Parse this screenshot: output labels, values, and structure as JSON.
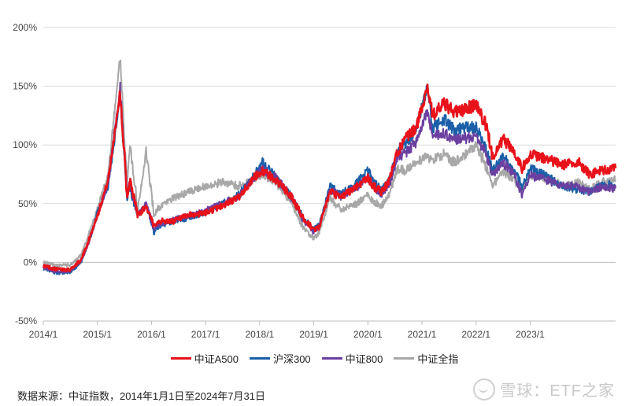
{
  "chart_data": {
    "type": "line",
    "title": "",
    "xlabel": "",
    "ylabel": "",
    "y_ticks": [
      "-50%",
      "0%",
      "50%",
      "100%",
      "150%",
      "200%"
    ],
    "ylim": [
      -50,
      200
    ],
    "x_ticks": [
      "2014/1",
      "2015/1",
      "2016/1",
      "2017/1",
      "2018/1",
      "2019/1",
      "2020/1",
      "2021/1",
      "2022/1",
      "2023/1"
    ],
    "x_tick_years": [
      2014,
      2015,
      2016,
      2017,
      2018,
      2019,
      2020,
      2021,
      2022,
      2023
    ],
    "xlim": [
      2014.0,
      2024.58
    ],
    "grid": "horizontal",
    "legend_position": "bottom",
    "series": [
      {
        "name": "中证A500",
        "color": "#e8121b",
        "points": [
          [
            2014.0,
            -3
          ],
          [
            2014.25,
            -6
          ],
          [
            2014.5,
            -6
          ],
          [
            2014.7,
            2
          ],
          [
            2014.85,
            20
          ],
          [
            2015.0,
            40
          ],
          [
            2015.2,
            70
          ],
          [
            2015.42,
            145
          ],
          [
            2015.55,
            55
          ],
          [
            2015.6,
            70
          ],
          [
            2015.75,
            40
          ],
          [
            2015.9,
            48
          ],
          [
            2016.05,
            30
          ],
          [
            2016.1,
            35
          ],
          [
            2016.4,
            35
          ],
          [
            2016.7,
            40
          ],
          [
            2017.0,
            42
          ],
          [
            2017.3,
            48
          ],
          [
            2017.6,
            55
          ],
          [
            2017.9,
            72
          ],
          [
            2018.05,
            78
          ],
          [
            2018.3,
            70
          ],
          [
            2018.6,
            55
          ],
          [
            2018.8,
            38
          ],
          [
            2019.0,
            28
          ],
          [
            2019.1,
            30
          ],
          [
            2019.3,
            60
          ],
          [
            2019.5,
            55
          ],
          [
            2019.8,
            65
          ],
          [
            2020.0,
            72
          ],
          [
            2020.1,
            65
          ],
          [
            2020.25,
            60
          ],
          [
            2020.4,
            70
          ],
          [
            2020.55,
            95
          ],
          [
            2020.7,
            105
          ],
          [
            2020.9,
            115
          ],
          [
            2021.1,
            150
          ],
          [
            2021.2,
            125
          ],
          [
            2021.4,
            135
          ],
          [
            2021.6,
            128
          ],
          [
            2021.8,
            130
          ],
          [
            2022.0,
            135
          ],
          [
            2022.2,
            115
          ],
          [
            2022.3,
            90
          ],
          [
            2022.5,
            105
          ],
          [
            2022.7,
            95
          ],
          [
            2022.85,
            80
          ],
          [
            2023.0,
            92
          ],
          [
            2023.3,
            88
          ],
          [
            2023.6,
            83
          ],
          [
            2023.9,
            85
          ],
          [
            2024.1,
            75
          ],
          [
            2024.3,
            78
          ],
          [
            2024.58,
            80
          ]
        ]
      },
      {
        "name": "沪深300",
        "color": "#1a5fa8",
        "points": [
          [
            2014.0,
            -5
          ],
          [
            2014.25,
            -9
          ],
          [
            2014.5,
            -8
          ],
          [
            2014.7,
            0
          ],
          [
            2014.85,
            18
          ],
          [
            2015.0,
            42
          ],
          [
            2015.2,
            65
          ],
          [
            2015.42,
            140
          ],
          [
            2015.55,
            55
          ],
          [
            2015.6,
            62
          ],
          [
            2015.75,
            40
          ],
          [
            2015.9,
            50
          ],
          [
            2016.05,
            25
          ],
          [
            2016.1,
            30
          ],
          [
            2016.4,
            35
          ],
          [
            2016.7,
            38
          ],
          [
            2017.0,
            42
          ],
          [
            2017.3,
            50
          ],
          [
            2017.6,
            57
          ],
          [
            2017.9,
            74
          ],
          [
            2018.05,
            85
          ],
          [
            2018.3,
            72
          ],
          [
            2018.6,
            55
          ],
          [
            2018.8,
            38
          ],
          [
            2019.0,
            28
          ],
          [
            2019.1,
            32
          ],
          [
            2019.3,
            65
          ],
          [
            2019.5,
            58
          ],
          [
            2019.8,
            68
          ],
          [
            2020.0,
            78
          ],
          [
            2020.1,
            70
          ],
          [
            2020.25,
            62
          ],
          [
            2020.4,
            72
          ],
          [
            2020.55,
            98
          ],
          [
            2020.7,
            100
          ],
          [
            2020.9,
            115
          ],
          [
            2021.1,
            150
          ],
          [
            2021.2,
            115
          ],
          [
            2021.4,
            122
          ],
          [
            2021.6,
            112
          ],
          [
            2021.8,
            115
          ],
          [
            2022.0,
            115
          ],
          [
            2022.2,
            95
          ],
          [
            2022.3,
            78
          ],
          [
            2022.5,
            90
          ],
          [
            2022.7,
            78
          ],
          [
            2022.85,
            65
          ],
          [
            2023.0,
            80
          ],
          [
            2023.3,
            73
          ],
          [
            2023.6,
            65
          ],
          [
            2023.9,
            62
          ],
          [
            2024.1,
            60
          ],
          [
            2024.3,
            66
          ],
          [
            2024.58,
            66
          ]
        ]
      },
      {
        "name": "中证800",
        "color": "#6b3fa0",
        "points": [
          [
            2014.0,
            -4
          ],
          [
            2014.25,
            -8
          ],
          [
            2014.5,
            -7
          ],
          [
            2014.7,
            1
          ],
          [
            2014.85,
            18
          ],
          [
            2015.0,
            40
          ],
          [
            2015.2,
            68
          ],
          [
            2015.42,
            148
          ],
          [
            2015.55,
            58
          ],
          [
            2015.6,
            68
          ],
          [
            2015.75,
            40
          ],
          [
            2015.9,
            50
          ],
          [
            2016.05,
            28
          ],
          [
            2016.1,
            32
          ],
          [
            2016.4,
            36
          ],
          [
            2016.7,
            40
          ],
          [
            2017.0,
            44
          ],
          [
            2017.3,
            50
          ],
          [
            2017.6,
            56
          ],
          [
            2017.9,
            72
          ],
          [
            2018.05,
            80
          ],
          [
            2018.3,
            72
          ],
          [
            2018.6,
            55
          ],
          [
            2018.8,
            36
          ],
          [
            2019.0,
            26
          ],
          [
            2019.1,
            30
          ],
          [
            2019.3,
            62
          ],
          [
            2019.5,
            56
          ],
          [
            2019.8,
            64
          ],
          [
            2020.0,
            72
          ],
          [
            2020.1,
            64
          ],
          [
            2020.25,
            58
          ],
          [
            2020.4,
            66
          ],
          [
            2020.55,
            90
          ],
          [
            2020.7,
            93
          ],
          [
            2020.9,
            103
          ],
          [
            2021.1,
            130
          ],
          [
            2021.2,
            108
          ],
          [
            2021.4,
            110
          ],
          [
            2021.6,
            104
          ],
          [
            2021.8,
            106
          ],
          [
            2022.0,
            108
          ],
          [
            2022.2,
            90
          ],
          [
            2022.3,
            75
          ],
          [
            2022.5,
            85
          ],
          [
            2022.7,
            75
          ],
          [
            2022.85,
            58
          ],
          [
            2023.0,
            74
          ],
          [
            2023.3,
            70
          ],
          [
            2023.6,
            66
          ],
          [
            2023.9,
            64
          ],
          [
            2024.1,
            60
          ],
          [
            2024.3,
            64
          ],
          [
            2024.58,
            63
          ]
        ]
      },
      {
        "name": "中证全指",
        "color": "#a8a8a8",
        "points": [
          [
            2014.0,
            0
          ],
          [
            2014.25,
            -3
          ],
          [
            2014.5,
            -2
          ],
          [
            2014.7,
            6
          ],
          [
            2014.85,
            25
          ],
          [
            2015.0,
            45
          ],
          [
            2015.2,
            75
          ],
          [
            2015.42,
            175
          ],
          [
            2015.55,
            65
          ],
          [
            2015.6,
            100
          ],
          [
            2015.75,
            45
          ],
          [
            2015.9,
            95
          ],
          [
            2016.05,
            40
          ],
          [
            2016.1,
            45
          ],
          [
            2016.4,
            55
          ],
          [
            2016.7,
            60
          ],
          [
            2017.0,
            65
          ],
          [
            2017.3,
            68
          ],
          [
            2017.6,
            65
          ],
          [
            2017.9,
            70
          ],
          [
            2018.05,
            75
          ],
          [
            2018.3,
            68
          ],
          [
            2018.6,
            50
          ],
          [
            2018.8,
            30
          ],
          [
            2019.0,
            20
          ],
          [
            2019.1,
            25
          ],
          [
            2019.3,
            55
          ],
          [
            2019.5,
            45
          ],
          [
            2019.8,
            50
          ],
          [
            2020.0,
            58
          ],
          [
            2020.1,
            52
          ],
          [
            2020.25,
            48
          ],
          [
            2020.4,
            58
          ],
          [
            2020.55,
            80
          ],
          [
            2020.7,
            78
          ],
          [
            2020.9,
            85
          ],
          [
            2021.1,
            90
          ],
          [
            2021.2,
            88
          ],
          [
            2021.4,
            92
          ],
          [
            2021.6,
            85
          ],
          [
            2021.8,
            92
          ],
          [
            2022.0,
            100
          ],
          [
            2022.2,
            80
          ],
          [
            2022.3,
            65
          ],
          [
            2022.5,
            78
          ],
          [
            2022.7,
            70
          ],
          [
            2022.85,
            62
          ],
          [
            2023.0,
            74
          ],
          [
            2023.3,
            72
          ],
          [
            2023.6,
            65
          ],
          [
            2023.9,
            68
          ],
          [
            2024.1,
            62
          ],
          [
            2024.3,
            68
          ],
          [
            2024.58,
            70
          ]
        ]
      }
    ]
  },
  "legend": {
    "items": [
      "中证A500",
      "沪深300",
      "中证800",
      "中证全指"
    ],
    "colors": [
      "#e8121b",
      "#1a5fa8",
      "#6b3fa0",
      "#a8a8a8"
    ]
  },
  "source_note": "数据来源：中证指数，2014年1月1日至2024年7月31日",
  "watermark": {
    "text": "雪球：ETF之家",
    "icon": "snowball-logo-icon"
  }
}
